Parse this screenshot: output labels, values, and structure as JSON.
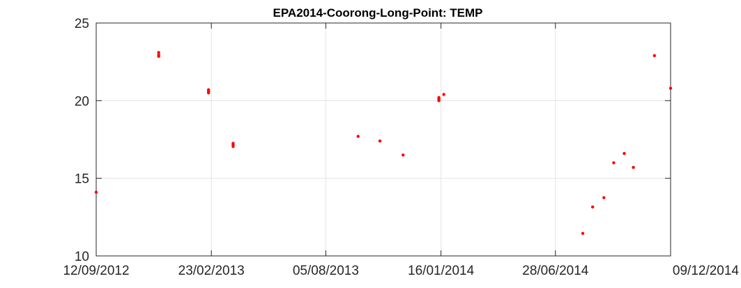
{
  "chart_data": {
    "type": "scatter",
    "title": "EPA2014-Coorong-Long-Point: TEMP",
    "xlabel": "",
    "ylabel": "",
    "x_axis_type": "date",
    "xlim": [
      "2012-09-12",
      "2014-12-09"
    ],
    "ylim": [
      10,
      25
    ],
    "xticks": [
      "2012-09-12",
      "2013-02-23",
      "2013-08-05",
      "2014-01-16",
      "2014-06-28",
      "2014-12-09"
    ],
    "xtick_labels": [
      "12/09/2012",
      "23/02/2013",
      "05/08/2013",
      "16/01/2014",
      "28/06/2014",
      "09/12/2014"
    ],
    "yticks": [
      10,
      15,
      20,
      25
    ],
    "ytick_labels": [
      "10",
      "15",
      "20",
      "25"
    ],
    "grid": true,
    "legend": "none",
    "marker_color": "#ff0000",
    "series": [
      {
        "points": [
          {
            "x": "2012-09-12",
            "y": 14.1
          },
          {
            "x": "2012-12-10",
            "y": 23.1
          },
          {
            "x": "2012-12-10",
            "y": 22.95
          },
          {
            "x": "2012-12-10",
            "y": 22.85
          },
          {
            "x": "2013-02-19",
            "y": 20.7
          },
          {
            "x": "2013-02-19",
            "y": 20.6
          },
          {
            "x": "2013-02-19",
            "y": 20.5
          },
          {
            "x": "2013-03-26",
            "y": 17.25
          },
          {
            "x": "2013-03-26",
            "y": 17.15
          },
          {
            "x": "2013-03-26",
            "y": 17.05
          },
          {
            "x": "2013-09-20",
            "y": 17.7
          },
          {
            "x": "2013-10-21",
            "y": 17.4
          },
          {
            "x": "2013-11-23",
            "y": 16.5
          },
          {
            "x": "2014-01-13",
            "y": 20.2
          },
          {
            "x": "2014-01-13",
            "y": 20.1
          },
          {
            "x": "2014-01-13",
            "y": 20.0
          },
          {
            "x": "2014-01-20",
            "y": 20.4
          },
          {
            "x": "2014-08-06",
            "y": 11.45
          },
          {
            "x": "2014-08-20",
            "y": 13.15
          },
          {
            "x": "2014-09-05",
            "y": 13.75
          },
          {
            "x": "2014-09-19",
            "y": 16.0
          },
          {
            "x": "2014-10-04",
            "y": 16.6
          },
          {
            "x": "2014-10-17",
            "y": 15.7
          },
          {
            "x": "2014-11-16",
            "y": 22.9
          },
          {
            "x": "2014-12-09",
            "y": 20.8
          }
        ]
      }
    ]
  }
}
